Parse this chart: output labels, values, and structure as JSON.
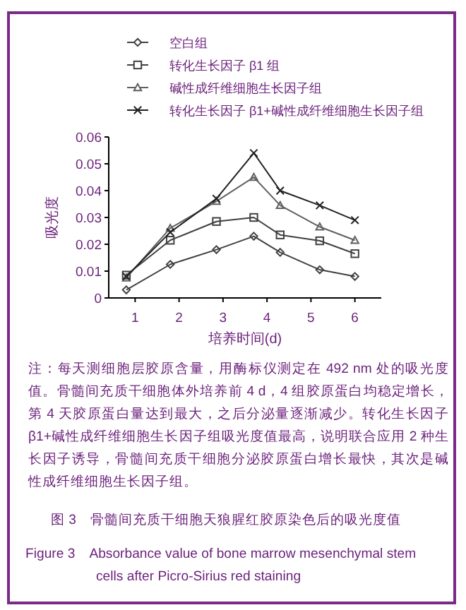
{
  "chart_data": {
    "type": "line",
    "title": "图 3　骨髓间充质干细胞天狼腥红胶原染色后的吸光度值",
    "subtitle": "Figure 3　Absorbance value of bone marrow mesenchymal stem cells after Picro-Sirius red staining",
    "xlabel": "培养时间(d)",
    "ylabel": "吸光度",
    "annotations": [
      "注：每天测细胞层胶原含量，用酶标仪测定在 492 nm 处的吸光度值。骨髓间充质干细胞体外培养前 4 d，4 组胶原蛋白均稳定增长，第 4 天胶原蛋白量达到最大，之后分泌量逐渐减少。转化生长因子 β1+碱性成纤维细胞生长因子组吸光度值最高，说明联合应用 2 种生长因子诱导，骨髓间充质干细胞分泌胶原蛋白增长最快，其次是碱性成纤维细胞生长因子组。"
    ],
    "x": [
      0.8,
      1.8,
      2.85,
      3.7,
      4.3,
      5.2,
      6.0
    ],
    "series": [
      {
        "name": "空白组",
        "color": "#404040",
        "marker": "diamond",
        "values": [
          0.003,
          0.0125,
          0.018,
          0.023,
          0.017,
          0.0105,
          0.008
        ]
      },
      {
        "name": "转化生长因子 β1 组",
        "color": "#404040",
        "marker": "square",
        "values": [
          0.0085,
          0.0215,
          0.0285,
          0.03,
          0.0235,
          0.0213,
          0.0165
        ]
      },
      {
        "name": "碱性成纤维细胞生长因子组",
        "color": "#606060",
        "marker": "triangle",
        "values": [
          0.0075,
          0.026,
          0.036,
          0.045,
          0.0345,
          0.0265,
          0.0215
        ]
      },
      {
        "name": "转化生长因子 β1+碱性成纤维细胞生长因子组",
        "color": "#202020",
        "marker": "cross",
        "values": [
          0.008,
          0.0245,
          0.037,
          0.054,
          0.04,
          0.0345,
          0.029
        ]
      }
    ],
    "xlim": [
      0.4,
      6.6
    ],
    "xticks": [
      1,
      2,
      3,
      4,
      5,
      6
    ],
    "ylim": [
      0,
      0.06
    ],
    "yticks": [
      0,
      0.01,
      0.02,
      0.03,
      0.04,
      0.05,
      0.06
    ],
    "legend": "top",
    "grid": false,
    "line_style": "solid"
  }
}
